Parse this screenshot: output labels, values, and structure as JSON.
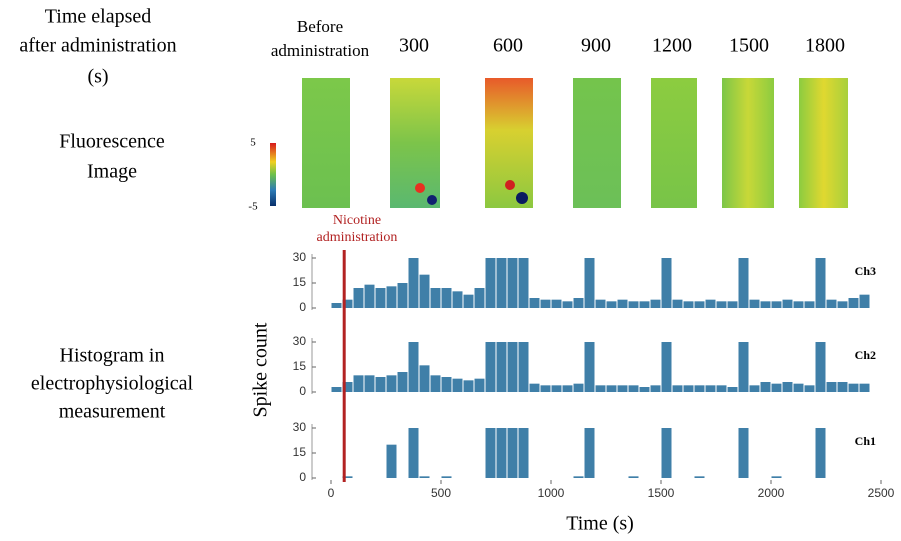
{
  "figure": {
    "row_label_time": [
      "Time elapsed",
      "after administration",
      "(s)"
    ],
    "row_label_fluorescence": [
      "Fluorescence",
      "Image"
    ],
    "row_label_histogram": [
      "Histogram in",
      "electrophysiological",
      "measurement"
    ],
    "image_labels": [
      [
        "Before",
        "administration"
      ],
      "300",
      "600",
      "900",
      "1200",
      "1500",
      "1800"
    ],
    "colorbar_ticks": [
      "5",
      "-5"
    ],
    "annotation": [
      "Nicotine",
      "administration"
    ],
    "annotation_time": 60
  },
  "chart_data": [
    {
      "type": "histogram",
      "title": "Ch3",
      "color": "#3f7fa8",
      "bins": [
        0,
        50,
        100,
        150,
        200,
        250,
        300,
        350,
        400,
        450,
        500,
        550,
        600,
        650,
        700,
        750,
        800,
        850,
        900,
        950,
        1000,
        1050,
        1100,
        1150,
        1200,
        1250,
        1300,
        1350,
        1400,
        1450,
        1500,
        1550,
        1600,
        1650,
        1700,
        1750,
        1800,
        1850,
        1900,
        1950,
        2000,
        2050,
        2100,
        2150,
        2200,
        2250,
        2300,
        2350,
        2400,
        2450
      ],
      "values": [
        3,
        5,
        12,
        14,
        12,
        13,
        15,
        30,
        20,
        12,
        12,
        10,
        8,
        12,
        30,
        30,
        30,
        30,
        6,
        5,
        5,
        4,
        6,
        30,
        5,
        4,
        5,
        4,
        4,
        5,
        30,
        5,
        4,
        4,
        5,
        4,
        4,
        30,
        5,
        4,
        4,
        5,
        4,
        4,
        30,
        5,
        4,
        6,
        8
      ],
      "xlim": [
        0,
        2500
      ],
      "ylim": [
        0,
        30
      ],
      "yticks": [
        0,
        15,
        30
      ]
    },
    {
      "type": "histogram",
      "title": "Ch2",
      "color": "#3f7fa8",
      "y_label": "Spike count",
      "bins": [
        0,
        50,
        100,
        150,
        200,
        250,
        300,
        350,
        400,
        450,
        500,
        550,
        600,
        650,
        700,
        750,
        800,
        850,
        900,
        950,
        1000,
        1050,
        1100,
        1150,
        1200,
        1250,
        1300,
        1350,
        1400,
        1450,
        1500,
        1550,
        1600,
        1650,
        1700,
        1750,
        1800,
        1850,
        1900,
        1950,
        2000,
        2050,
        2100,
        2150,
        2200,
        2250,
        2300,
        2350,
        2400,
        2450
      ],
      "values": [
        3,
        6,
        10,
        10,
        9,
        10,
        12,
        30,
        16,
        10,
        9,
        8,
        7,
        8,
        30,
        30,
        30,
        30,
        5,
        4,
        4,
        4,
        5,
        30,
        4,
        4,
        4,
        4,
        3,
        4,
        30,
        4,
        4,
        4,
        4,
        4,
        3,
        30,
        4,
        6,
        5,
        6,
        5,
        4,
        30,
        6,
        6,
        5,
        5
      ],
      "xlim": [
        0,
        2500
      ],
      "ylim": [
        0,
        30
      ],
      "yticks": [
        0,
        15,
        30
      ]
    },
    {
      "type": "histogram",
      "title": "Ch1",
      "color": "#3f7fa8",
      "x_label": "Time (s)",
      "bins": [
        0,
        50,
        100,
        150,
        200,
        250,
        300,
        350,
        400,
        450,
        500,
        550,
        600,
        650,
        700,
        750,
        800,
        850,
        900,
        950,
        1000,
        1050,
        1100,
        1150,
        1200,
        1250,
        1300,
        1350,
        1400,
        1450,
        1500,
        1550,
        1600,
        1650,
        1700,
        1750,
        1800,
        1850,
        1900,
        1950,
        2000,
        2050,
        2100,
        2150,
        2200,
        2250,
        2300,
        2350,
        2400,
        2450
      ],
      "values": [
        0,
        1,
        0,
        0,
        0,
        20,
        0,
        30,
        1,
        0,
        1,
        0,
        0,
        0,
        30,
        30,
        30,
        30,
        0,
        0,
        0,
        0,
        1,
        30,
        0,
        0,
        0,
        1,
        0,
        0,
        30,
        0,
        0,
        1,
        0,
        0,
        0,
        30,
        0,
        0,
        1,
        0,
        0,
        0,
        30,
        0,
        0,
        0,
        0
      ],
      "xlim": [
        0,
        2500
      ],
      "ylim": [
        0,
        30
      ],
      "yticks": [
        0,
        15,
        30
      ],
      "xticks": [
        0,
        500,
        1000,
        1500,
        2000,
        2500
      ]
    }
  ]
}
